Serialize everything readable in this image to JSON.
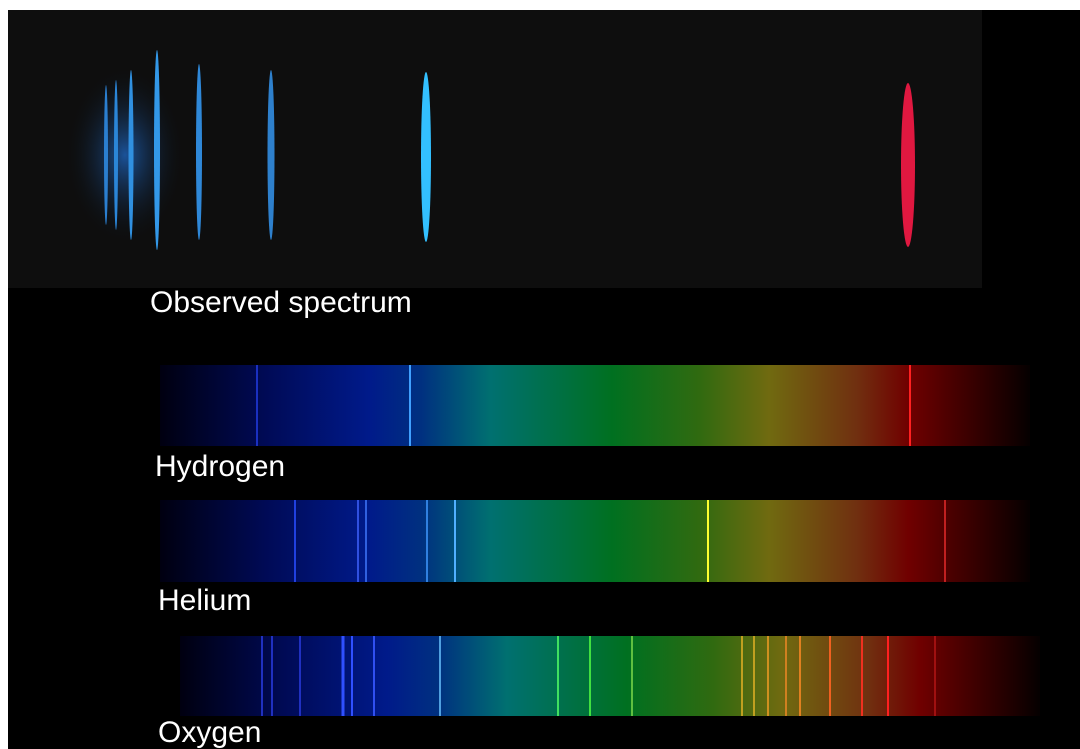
{
  "observed": {
    "label": "Observed spectrum"
  },
  "spectra": [
    {
      "label": "Hydrogen"
    },
    {
      "label": "Helium"
    },
    {
      "label": "Oxygen"
    }
  ]
}
